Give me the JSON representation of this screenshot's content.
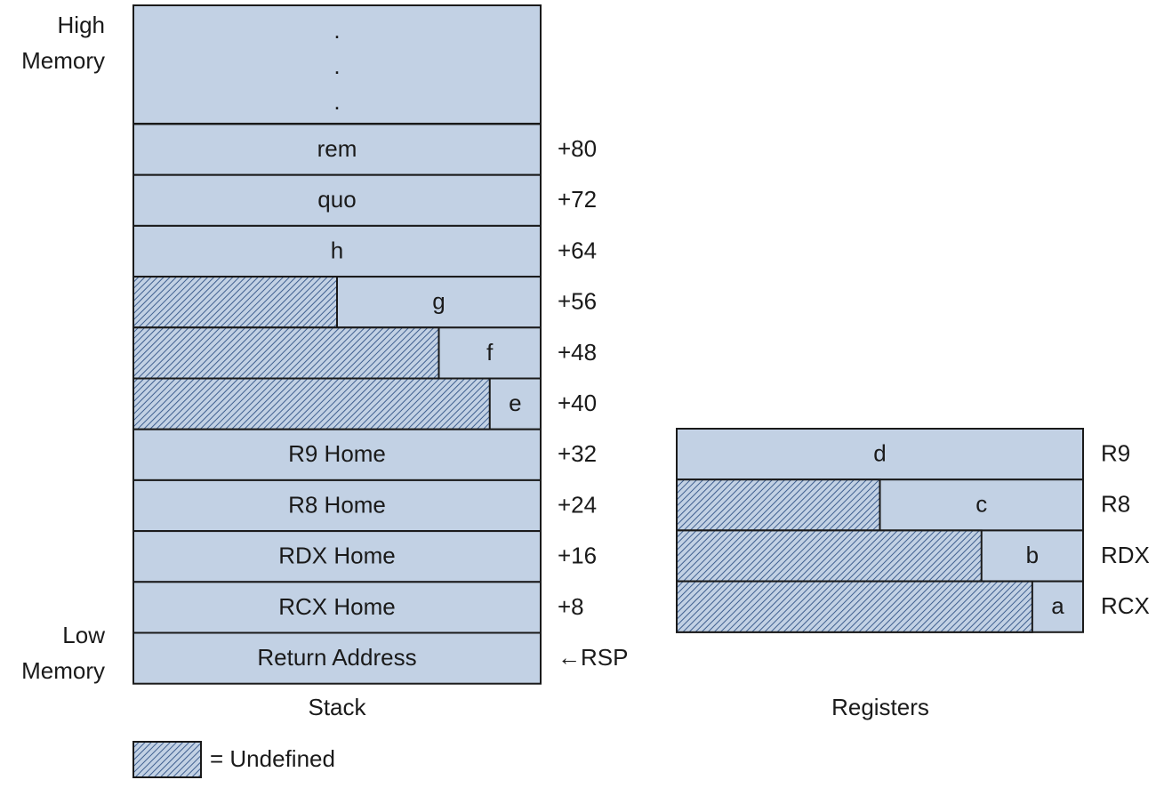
{
  "labels": {
    "high_memory": [
      "High",
      "Memory"
    ],
    "low_memory": [
      "Low",
      "Memory"
    ]
  },
  "stack": {
    "title": "Stack",
    "top": [
      ".",
      ".",
      "."
    ],
    "rows": [
      {
        "label": "rem",
        "offset": "+80"
      },
      {
        "label": "quo",
        "offset": "+72"
      },
      {
        "label": "h",
        "offset": "+64"
      },
      {
        "label": "g",
        "offset": "+56"
      },
      {
        "label": "f",
        "offset": "+48"
      },
      {
        "label": "e",
        "offset": "+40"
      },
      {
        "label": "R9 Home",
        "offset": "+32"
      },
      {
        "label": "R8 Home",
        "offset": "+24"
      },
      {
        "label": "RDX Home",
        "offset": "+16"
      },
      {
        "label": "RCX Home",
        "offset": "+8"
      },
      {
        "label": "Return Address",
        "offset": "←RSP"
      }
    ]
  },
  "registers": {
    "title": "Registers",
    "rows": [
      {
        "label": "d",
        "name": "R9"
      },
      {
        "label": "c",
        "name": "R8"
      },
      {
        "label": "b",
        "name": "RDX"
      },
      {
        "label": "a",
        "name": "RCX"
      }
    ]
  },
  "legend": {
    "label": "= Undefined"
  }
}
